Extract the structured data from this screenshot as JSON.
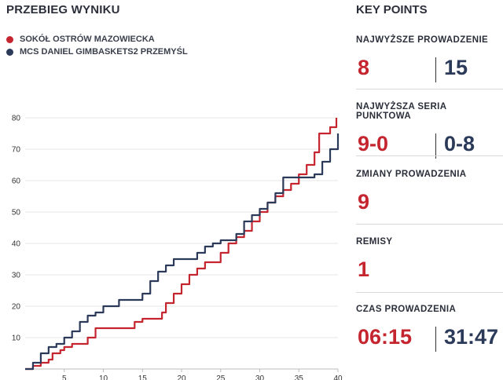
{
  "left_title": "PRZEBIEG WYNIKU",
  "legend": [
    {
      "label": "SOKÓŁ OSTRÓW MAZOWIECKA",
      "color": "#c4252f"
    },
    {
      "label": "MCS DANIEL GIMBASKETS2 PRZEMYŚL",
      "color": "#2c3a5a"
    }
  ],
  "chart_data": {
    "type": "line",
    "xlim": [
      0,
      40
    ],
    "ylim": [
      0,
      80
    ],
    "xticks": [
      5,
      10,
      15,
      20,
      25,
      30,
      35,
      40
    ],
    "yticks": [
      10,
      20,
      30,
      40,
      50,
      60,
      70,
      80
    ],
    "grid": "horizontal",
    "series": [
      {
        "name": "SOKÓŁ OSTRÓW MAZOWIECKA",
        "color": "#c4252f",
        "points": [
          [
            0,
            0
          ],
          [
            1,
            1
          ],
          [
            2,
            2
          ],
          [
            3,
            3
          ],
          [
            3.5,
            5
          ],
          [
            4.5,
            6
          ],
          [
            5,
            7
          ],
          [
            6,
            8
          ],
          [
            7.5,
            8
          ],
          [
            8,
            10
          ],
          [
            9,
            13
          ],
          [
            11,
            13
          ],
          [
            13,
            13
          ],
          [
            14,
            15
          ],
          [
            15,
            16
          ],
          [
            17,
            16
          ],
          [
            17.5,
            18
          ],
          [
            18,
            21
          ],
          [
            19,
            24
          ],
          [
            20,
            27
          ],
          [
            21,
            30
          ],
          [
            22,
            32
          ],
          [
            23,
            34
          ],
          [
            24,
            34
          ],
          [
            25,
            37
          ],
          [
            26,
            40
          ],
          [
            27,
            42
          ],
          [
            28,
            44
          ],
          [
            29,
            47
          ],
          [
            30,
            50
          ],
          [
            31,
            53
          ],
          [
            32,
            55
          ],
          [
            33,
            57
          ],
          [
            34,
            59
          ],
          [
            35,
            62
          ],
          [
            36,
            65
          ],
          [
            37,
            69
          ],
          [
            37.6,
            75
          ],
          [
            38,
            75
          ],
          [
            39,
            77
          ],
          [
            39.8,
            80
          ]
        ]
      },
      {
        "name": "MCS DANIEL GIMBASKETS2 PRZEMYŚL",
        "color": "#2c3a5a",
        "points": [
          [
            0,
            0
          ],
          [
            1,
            2
          ],
          [
            2,
            5
          ],
          [
            3,
            7
          ],
          [
            4,
            8
          ],
          [
            5,
            10
          ],
          [
            6,
            12
          ],
          [
            7,
            15
          ],
          [
            8,
            17
          ],
          [
            9,
            18
          ],
          [
            10,
            20
          ],
          [
            12,
            22
          ],
          [
            14,
            22
          ],
          [
            15,
            24
          ],
          [
            16,
            28
          ],
          [
            17,
            31
          ],
          [
            18,
            33
          ],
          [
            19,
            35
          ],
          [
            21,
            35
          ],
          [
            22,
            37
          ],
          [
            23,
            39
          ],
          [
            24,
            40
          ],
          [
            25,
            41
          ],
          [
            26,
            41
          ],
          [
            27,
            43
          ],
          [
            28,
            47
          ],
          [
            29,
            49
          ],
          [
            30,
            51
          ],
          [
            31,
            53
          ],
          [
            32,
            56
          ],
          [
            33,
            61
          ],
          [
            34,
            61
          ],
          [
            35,
            61
          ],
          [
            36,
            61
          ],
          [
            37,
            62
          ],
          [
            38,
            66
          ],
          [
            39,
            70
          ],
          [
            40,
            75
          ]
        ]
      }
    ]
  },
  "right": {
    "title": "KEY POINTS",
    "sections": [
      {
        "label": "NAJWYŻSZE PROWADZENIE",
        "left": "8",
        "right": "15"
      },
      {
        "label": "NAJWYŻSZA SERIA PUNKTOWA",
        "left": "9-0",
        "right": "0-8"
      },
      {
        "label": "ZMIANY PROWADZENIA",
        "left": "9",
        "right": ""
      },
      {
        "label": "REMISY",
        "left": "1",
        "right": ""
      },
      {
        "label": "CZAS PROWADZENIA",
        "left": "06:15",
        "right": "31:47"
      }
    ]
  }
}
